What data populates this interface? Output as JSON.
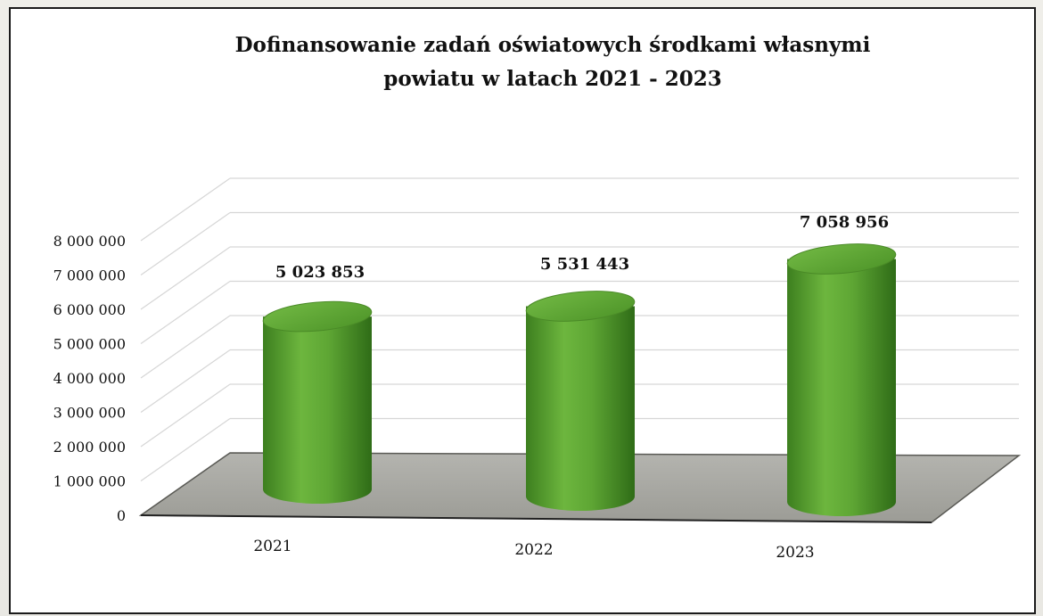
{
  "chart_data": {
    "type": "bar",
    "style": "3d-cylinder",
    "title_lines": [
      "Dofinansowanie zadań oświatowych środkami własnymi",
      "powiatu w latach 2021 - 2023"
    ],
    "categories": [
      "2021",
      "2022",
      "2023"
    ],
    "values": [
      5023853,
      5531443,
      7058956
    ],
    "data_labels": [
      "5 023 853",
      "5 531 443",
      "7 058 956"
    ],
    "y_ticks": [
      0,
      1000000,
      2000000,
      3000000,
      4000000,
      5000000,
      6000000,
      7000000,
      8000000
    ],
    "y_tick_labels": [
      "0",
      "1 000 000",
      "2 000 000",
      "3 000 000",
      "4 000 000",
      "5 000 000",
      "6 000 000",
      "7 000 000",
      "8 000 000"
    ],
    "ylim": [
      0,
      8000000
    ],
    "grid": true,
    "legend": "none",
    "bar_color": "#5aa532",
    "floor_color": "#a9a9a3"
  }
}
